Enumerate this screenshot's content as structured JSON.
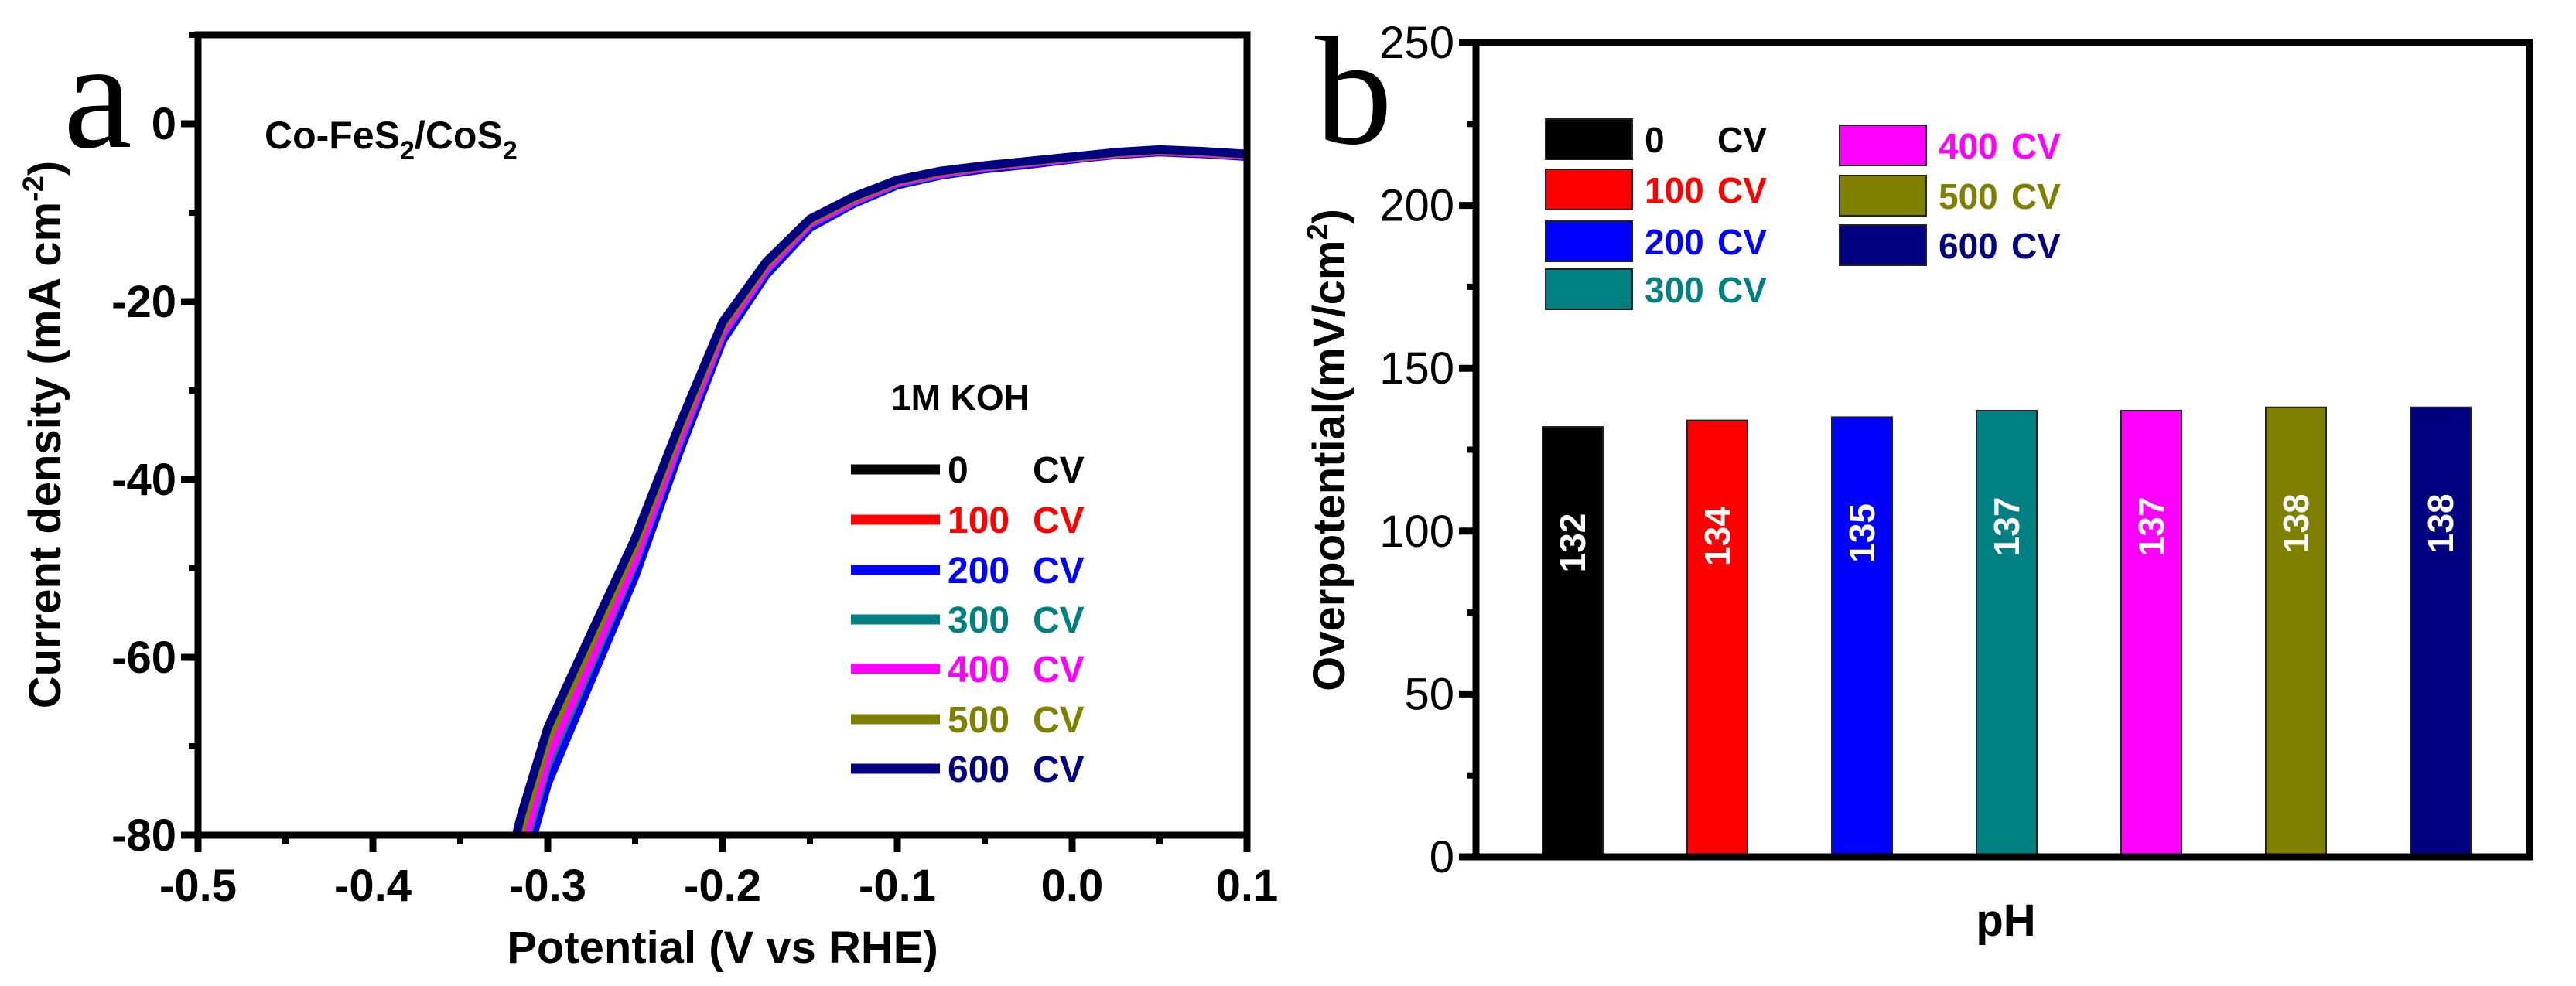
{
  "chart_data": [
    {
      "type": "line",
      "panel_label": "a",
      "annotation_parts": [
        "Co-FeS",
        "2",
        "/CoS",
        "2"
      ],
      "annotation": "Co-FeS2/CoS2",
      "legend_title": "1M KOH",
      "xlabel": "Potential (V vs RHE)",
      "ylabel_parts": [
        "Current density (mA cm",
        "-2",
        ")"
      ],
      "ylabel": "Current density (mA cm-2)",
      "xlim": [
        -0.5,
        0.1
      ],
      "ylim": [
        -80,
        10
      ],
      "xticks": [
        -0.5,
        -0.4,
        -0.3,
        -0.2,
        -0.1,
        0.0,
        0.1
      ],
      "xtick_labels": [
        "-0.5",
        "-0.4",
        "-0.3",
        "-0.2",
        "-0.1",
        "0.0",
        "0.1"
      ],
      "yticks": [
        0,
        -20,
        -40,
        -60,
        -80
      ],
      "ytick_labels": [
        "0",
        "-20",
        "-40",
        "-60",
        "-80"
      ],
      "legend_position": "center-right",
      "x": [
        -0.32,
        -0.315,
        -0.3,
        -0.275,
        -0.25,
        -0.225,
        -0.2,
        -0.175,
        -0.15,
        -0.125,
        -0.1,
        -0.075,
        -0.05,
        -0.025,
        0,
        0.025,
        0.05,
        0.075,
        0.1
      ],
      "series": [
        {
          "name": "0      CV",
          "label_num": "0",
          "label_unit": "CV",
          "color": "#000000",
          "y": [
            -84,
            -80,
            -70,
            -59,
            -48,
            -35,
            -23,
            -16,
            -11,
            -8.5,
            -6.5,
            -5.5,
            -4.8,
            -4.3,
            -3.8,
            -3.3,
            -3,
            -3.2,
            -3.5
          ]
        },
        {
          "name": "100 CV",
          "label_num": "100",
          "label_unit": "CV",
          "color": "#ff0000",
          "y": [
            -87,
            -83.2,
            -72.8,
            -61.4,
            -49.9,
            -36.4,
            -23.9,
            -16.6,
            -11.4,
            -8.8,
            -6.8,
            -5.7,
            -5.0,
            -4.5,
            -4.0,
            -3.4,
            -3.1,
            -3.3,
            -3.6
          ]
        },
        {
          "name": "200 CV",
          "label_num": "200",
          "label_unit": "CV",
          "color": "#0000ff",
          "y": [
            -89,
            -84.8,
            -74.2,
            -62.5,
            -50.9,
            -37.1,
            -24.4,
            -17,
            -11.7,
            -9,
            -6.9,
            -5.8,
            -5.1,
            -4.6,
            -4,
            -3.5,
            -3.2,
            -3.4,
            -3.7
          ]
        },
        {
          "name": "300 CV",
          "label_num": "300",
          "label_unit": "CV",
          "color": "#008080",
          "y": [
            -86.5,
            -82.4,
            -72.1,
            -60.8,
            -49.4,
            -36.1,
            -23.7,
            -16.5,
            -11.3,
            -8.8,
            -6.7,
            -5.7,
            -4.9,
            -4.4,
            -3.9,
            -3.4,
            -3.1,
            -3.3,
            -3.6
          ]
        },
        {
          "name": "400 CV",
          "label_num": "400",
          "label_unit": "CV",
          "color": "#ff00ff",
          "y": [
            -85.7,
            -81.6,
            -71.4,
            -60.2,
            -49,
            -35.7,
            -23.5,
            -16.3,
            -11.2,
            -8.7,
            -6.6,
            -5.6,
            -4.9,
            -4.4,
            -3.9,
            -3.4,
            -3.1,
            -3.3,
            -3.6
          ]
        },
        {
          "name": "500 CV",
          "label_num": "500",
          "label_unit": "CV",
          "color": "#808000",
          "y": [
            -83.2,
            -79.2,
            -69.3,
            -58.4,
            -47.5,
            -34.7,
            -22.8,
            -15.8,
            -10.9,
            -8.4,
            -6.4,
            -5.4,
            -4.8,
            -4.3,
            -3.8,
            -3.3,
            -3,
            -3.2,
            -3.5
          ]
        },
        {
          "name": "600 CV",
          "label_num": "600",
          "label_unit": "CV",
          "color": "#000080",
          "y": [
            -81.5,
            -77.6,
            -67.9,
            -57.2,
            -46.6,
            -34,
            -22.3,
            -15.5,
            -10.7,
            -8.2,
            -6.3,
            -5.3,
            -4.7,
            -4.2,
            -3.7,
            -3.2,
            -2.9,
            -3.1,
            -3.4
          ]
        }
      ]
    },
    {
      "type": "bar",
      "panel_label": "b",
      "xlabel": "pH",
      "ylabel_parts": [
        "Overpotential(mV/cm",
        "2",
        ")"
      ],
      "ylabel": "Overpotential(mV/cm2)",
      "ylim": [
        0,
        250
      ],
      "yticks": [
        0,
        50,
        100,
        150,
        200,
        250
      ],
      "ytick_labels": [
        "0",
        "50",
        "100",
        "150",
        "200",
        "250"
      ],
      "legend_position": "top-left",
      "categories": [
        "0 CV",
        "100 CV",
        "200 CV",
        "300 CV",
        "400 CV",
        "500 CV",
        "600 CV"
      ],
      "values": [
        132,
        134,
        135,
        137,
        137,
        138,
        138
      ],
      "value_labels": [
        "132",
        "134",
        "135",
        "137",
        "137",
        "138",
        "138"
      ],
      "colors": [
        "#000000",
        "#ff0000",
        "#0000ff",
        "#008080",
        "#ff00ff",
        "#808000",
        "#000080"
      ],
      "legend": [
        {
          "num": "0",
          "unit": "CV",
          "color": "#000000"
        },
        {
          "num": "100",
          "unit": "CV",
          "color": "#ff0000"
        },
        {
          "num": "200",
          "unit": "CV",
          "color": "#0000ff"
        },
        {
          "num": "300",
          "unit": "CV",
          "color": "#008080"
        },
        {
          "num": "400",
          "unit": "CV",
          "color": "#ff00ff"
        },
        {
          "num": "500",
          "unit": "CV",
          "color": "#808000"
        },
        {
          "num": "600",
          "unit": "CV",
          "color": "#000080"
        }
      ]
    }
  ]
}
